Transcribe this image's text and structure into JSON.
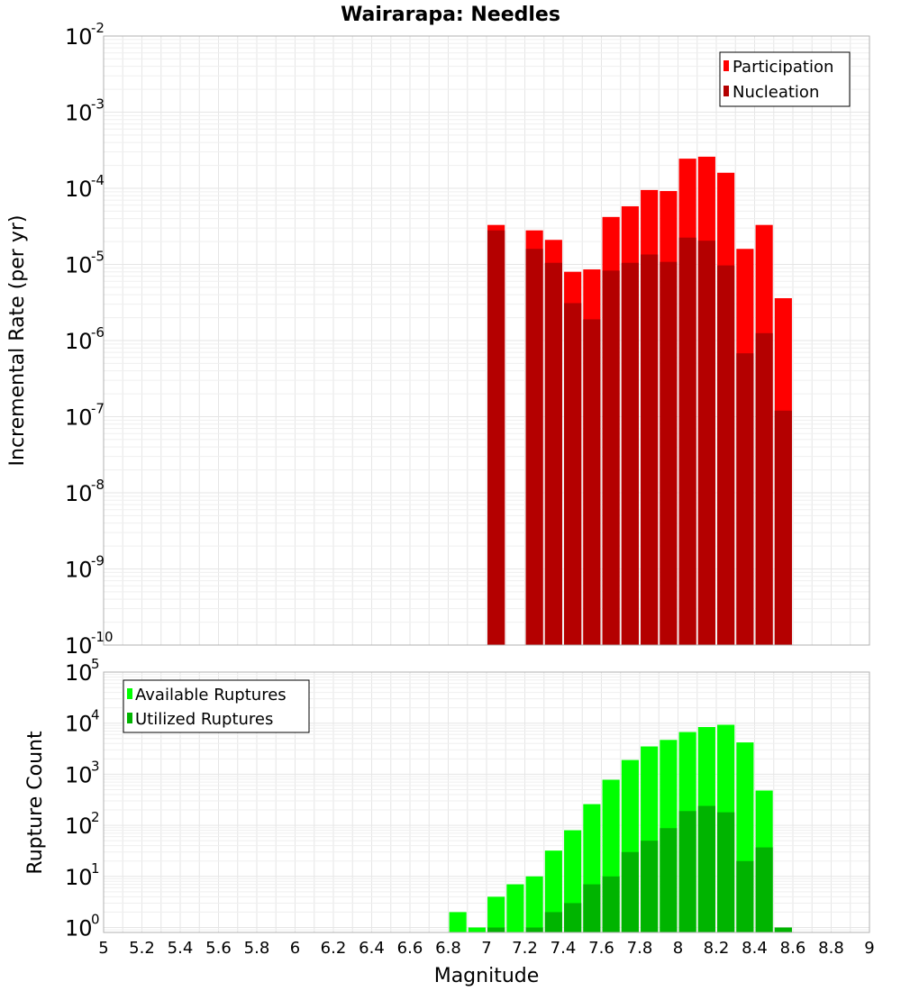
{
  "chart_data": [
    {
      "type": "bar",
      "title": "Wairarapa: Needles",
      "xlabel": "",
      "ylabel": "Incremental Rate (per yr)",
      "yscale": "log",
      "ylim": [
        1e-10,
        0.01
      ],
      "xlim": [
        5,
        9
      ],
      "grid": true,
      "legend_position": "top-right",
      "series": [
        {
          "name": "Participation",
          "color": "#ff0000",
          "x": [
            7.05,
            7.25,
            7.35,
            7.45,
            7.55,
            7.65,
            7.75,
            7.85,
            7.95,
            8.05,
            8.15,
            8.25,
            8.35,
            8.45,
            8.55
          ],
          "values": [
            3.3e-05,
            2.8e-05,
            2.1e-05,
            8e-06,
            8.6e-06,
            4.2e-05,
            5.8e-05,
            9.5e-05,
            9.2e-05,
            0.000245,
            0.00026,
            0.00016,
            1.6e-05,
            3.3e-05,
            3.6e-06
          ]
        },
        {
          "name": "Nucleation",
          "color": "#b40000",
          "x": [
            7.05,
            7.25,
            7.35,
            7.45,
            7.55,
            7.65,
            7.75,
            7.85,
            7.95,
            8.05,
            8.15,
            8.25,
            8.35,
            8.45,
            8.55
          ],
          "values": [
            2.8e-05,
            1.6e-05,
            1.05e-05,
            3.1e-06,
            1.9e-06,
            8.3e-06,
            1.05e-05,
            1.35e-05,
            1.08e-05,
            2.25e-05,
            2.05e-05,
            9.7e-06,
            6.8e-07,
            1.25e-06,
            1.2e-07
          ]
        }
      ],
      "y_ticks": [
        {
          "base": "10",
          "exp": "-10"
        },
        {
          "base": "10",
          "exp": "-9"
        },
        {
          "base": "10",
          "exp": "-8"
        },
        {
          "base": "10",
          "exp": "-7"
        },
        {
          "base": "10",
          "exp": "-6"
        },
        {
          "base": "10",
          "exp": "-5"
        },
        {
          "base": "10",
          "exp": "-4"
        },
        {
          "base": "10",
          "exp": "-3"
        },
        {
          "base": "10",
          "exp": "-2"
        }
      ]
    },
    {
      "type": "bar",
      "title": "",
      "xlabel": "Magnitude",
      "ylabel": "Rupture Count",
      "yscale": "log",
      "ylim": [
        0.8,
        100000
      ],
      "xlim": [
        5,
        9
      ],
      "grid": true,
      "legend_position": "top-left",
      "series": [
        {
          "name": "Available Ruptures",
          "color": "#00ff00",
          "x": [
            6.85,
            6.95,
            7.05,
            7.15,
            7.25,
            7.35,
            7.45,
            7.55,
            7.65,
            7.75,
            7.85,
            7.95,
            8.05,
            8.15,
            8.25,
            8.35,
            8.45,
            8.55
          ],
          "values": [
            2,
            1,
            4,
            7,
            10,
            32,
            80,
            260,
            780,
            1900,
            3500,
            4700,
            6700,
            8400,
            9300,
            4200,
            480,
            1
          ]
        },
        {
          "name": "Utilized Ruptures",
          "color": "#00b400",
          "x": [
            6.85,
            6.95,
            7.05,
            7.15,
            7.25,
            7.35,
            7.45,
            7.55,
            7.65,
            7.75,
            7.85,
            7.95,
            8.05,
            8.15,
            8.25,
            8.35,
            8.45,
            8.55
          ],
          "values": [
            0,
            0,
            1,
            0,
            1,
            2,
            3,
            7,
            10,
            30,
            50,
            88,
            190,
            240,
            180,
            20,
            37,
            1
          ]
        }
      ],
      "y_ticks": [
        {
          "base": "10",
          "exp": "0"
        },
        {
          "base": "10",
          "exp": "1"
        },
        {
          "base": "10",
          "exp": "2"
        },
        {
          "base": "10",
          "exp": "3"
        },
        {
          "base": "10",
          "exp": "4"
        },
        {
          "base": "10",
          "exp": "5"
        }
      ],
      "x_ticks": [
        "5",
        "5.2",
        "5.4",
        "5.6",
        "5.8",
        "6",
        "6.2",
        "6.4",
        "6.6",
        "6.8",
        "7",
        "7.2",
        "7.4",
        "7.6",
        "7.8",
        "8",
        "8.2",
        "8.4",
        "8.6",
        "8.8",
        "9"
      ]
    }
  ]
}
